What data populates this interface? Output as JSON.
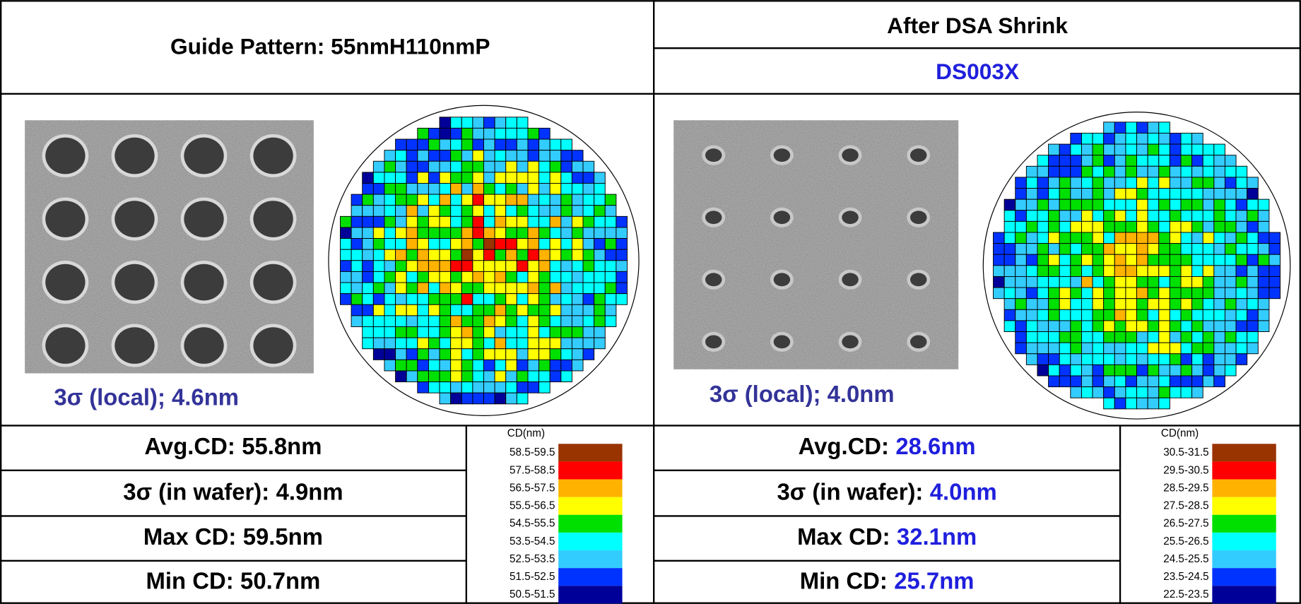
{
  "left": {
    "header": "Guide Pattern: 55nmH110nmP",
    "sigma_local": "3σ (local); 4.6nm",
    "stats": [
      {
        "label": "Avg.CD:",
        "value": "55.8nm"
      },
      {
        "label": "3σ (in wafer):",
        "value": "4.9nm"
      },
      {
        "label": "Max CD:",
        "value": "59.5nm"
      },
      {
        "label": "Min CD:",
        "value": "50.7nm"
      }
    ],
    "legend": {
      "title": "CD(nm)",
      "items": [
        {
          "range": "58.5-59.5",
          "color": "#993300"
        },
        {
          "range": "57.5-58.5",
          "color": "#ff0000"
        },
        {
          "range": "56.5-57.5",
          "color": "#ffb300"
        },
        {
          "range": "55.5-56.5",
          "color": "#ffff00"
        },
        {
          "range": "54.5-55.5",
          "color": "#00e000"
        },
        {
          "range": "53.5-54.5",
          "color": "#00ffff"
        },
        {
          "range": "52.5-53.5",
          "color": "#33ccff"
        },
        {
          "range": "51.5-52.5",
          "color": "#0033ff"
        },
        {
          "range": "50.5-51.5",
          "color": "#000099"
        }
      ]
    }
  },
  "right": {
    "header": "After DSA Shrink",
    "subheader": "DS003X",
    "sigma_local": "3σ (local); 4.0nm",
    "stats": [
      {
        "label": "Avg.CD:",
        "value": "28.6nm"
      },
      {
        "label": "3σ (in wafer):",
        "value": "4.0nm"
      },
      {
        "label": "Max CD:",
        "value": "32.1nm"
      },
      {
        "label": "Min CD:",
        "value": "25.7nm"
      }
    ],
    "legend": {
      "title": "CD(nm)",
      "items": [
        {
          "range": "30.5-31.5",
          "color": "#993300"
        },
        {
          "range": "29.5-30.5",
          "color": "#ff0000"
        },
        {
          "range": "28.5-29.5",
          "color": "#ffb300"
        },
        {
          "range": "27.5-28.5",
          "color": "#ffff00"
        },
        {
          "range": "26.5-27.5",
          "color": "#00e000"
        },
        {
          "range": "25.5-26.5",
          "color": "#00ffff"
        },
        {
          "range": "24.5-25.5",
          "color": "#33ccff"
        },
        {
          "range": "23.5-24.5",
          "color": "#0033ff"
        },
        {
          "range": "22.5-23.5",
          "color": "#000099"
        }
      ]
    }
  }
}
